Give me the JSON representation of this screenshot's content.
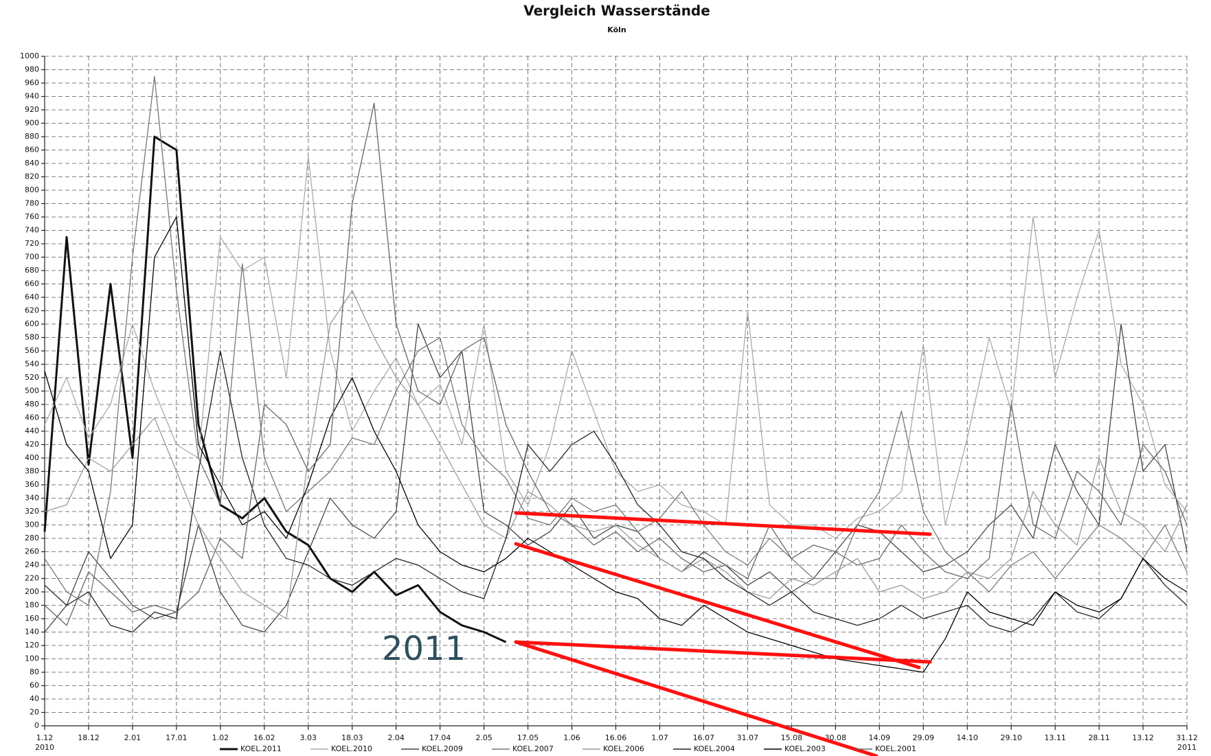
{
  "chart_data": {
    "type": "line",
    "title": "Vergleich Wasserstände",
    "subtitle": "Köln",
    "annotation": "2011",
    "year_labels": {
      "start": "2010",
      "end": "2011"
    },
    "categories": [
      "1.12",
      null,
      "18.12",
      null,
      "2.01",
      null,
      "17.01",
      null,
      "1.02",
      null,
      "16.02",
      null,
      "3.03",
      null,
      "18.03",
      null,
      "2.04",
      null,
      "17.04",
      null,
      "2.05",
      null,
      "17.05",
      null,
      "1.06",
      null,
      "16.06",
      null,
      "1.07",
      null,
      "16.07",
      null,
      "31.07",
      null,
      "15.08",
      null,
      "30.08",
      null,
      "14.09",
      null,
      "29.09",
      null,
      "14.10",
      null,
      "29.10",
      null,
      "13.11",
      null,
      "28.11",
      null,
      "13.12",
      null,
      "31.12"
    ],
    "ylim": [
      0,
      1000
    ],
    "yticks": [
      0,
      20,
      40,
      60,
      80,
      100,
      120,
      140,
      160,
      180,
      200,
      220,
      240,
      260,
      280,
      300,
      320,
      340,
      360,
      380,
      400,
      420,
      440,
      460,
      480,
      500,
      520,
      540,
      560,
      580,
      600,
      620,
      640,
      660,
      680,
      700,
      720,
      740,
      760,
      780,
      800,
      820,
      840,
      860,
      880,
      900,
      920,
      940,
      960,
      980,
      1000
    ],
    "grid": true,
    "series": [
      {
        "name": "KOEL.2011",
        "color": "#111111",
        "values": [
          290,
          730,
          390,
          660,
          400,
          880,
          860,
          450,
          330,
          310,
          340,
          290,
          270,
          220,
          200,
          230,
          195,
          210,
          170,
          150,
          140,
          125,
          null,
          null,
          null,
          null,
          null,
          null,
          null,
          null,
          null,
          null,
          null,
          null,
          null,
          null,
          null,
          null,
          null,
          null,
          null,
          null,
          null,
          null,
          null,
          null,
          null,
          null,
          null,
          null,
          null,
          null,
          null
        ]
      },
      {
        "name": "KOEL.2010",
        "color": "#aaaaaa",
        "values": [
          450,
          520,
          430,
          480,
          600,
          500,
          420,
          400,
          730,
          680,
          700,
          520,
          850,
          560,
          440,
          500,
          550,
          480,
          510,
          420,
          600,
          380,
          330,
          420,
          560,
          470,
          380,
          350,
          360,
          330,
          320,
          300,
          620,
          330,
          300,
          300,
          280,
          310,
          320,
          350,
          570,
          300,
          430,
          580,
          470,
          760,
          520,
          640,
          740,
          540,
          480,
          360,
          320
        ]
      },
      {
        "name": "KOEL.2009",
        "color": "#444444",
        "values": [
          140,
          180,
          260,
          220,
          180,
          160,
          170,
          300,
          200,
          150,
          140,
          180,
          260,
          340,
          300,
          280,
          320,
          600,
          520,
          560,
          320,
          300,
          270,
          290,
          330,
          280,
          300,
          290,
          250,
          230,
          260,
          240,
          210,
          230,
          200,
          220,
          260,
          300,
          290,
          260,
          230,
          240,
          260,
          300,
          330,
          280,
          420,
          350,
          300,
          600,
          380,
          420,
          260
        ]
      },
      {
        "name": "KOEL.2007",
        "color": "#777777",
        "values": [
          250,
          200,
          180,
          350,
          700,
          970,
          650,
          400,
          330,
          690,
          400,
          320,
          350,
          380,
          430,
          420,
          500,
          560,
          580,
          450,
          400,
          370,
          310,
          300,
          340,
          320,
          330,
          290,
          310,
          350,
          300,
          260,
          240,
          280,
          250,
          220,
          220,
          300,
          350,
          470,
          320,
          260,
          230,
          200,
          240,
          260,
          220,
          260,
          300,
          280,
          250,
          300,
          230
        ]
      },
      {
        "name": "KOEL.2006",
        "color": "#999999",
        "values": [
          320,
          330,
          400,
          380,
          420,
          460,
          380,
          300,
          250,
          200,
          180,
          160,
          400,
          600,
          650,
          580,
          520,
          480,
          420,
          360,
          300,
          280,
          350,
          330,
          300,
          290,
          300,
          270,
          250,
          230,
          250,
          230,
          200,
          190,
          220,
          210,
          230,
          250,
          200,
          210,
          190,
          200,
          230,
          220,
          250,
          350,
          300,
          270,
          400,
          320,
          300,
          260,
          330
        ]
      },
      {
        "name": "KOEL.2004",
        "color": "#222222",
        "values": [
          210,
          180,
          200,
          150,
          140,
          170,
          160,
          380,
          560,
          400,
          300,
          250,
          240,
          220,
          210,
          230,
          250,
          240,
          220,
          200,
          190,
          280,
          420,
          380,
          420,
          440,
          390,
          330,
          300,
          260,
          250,
          220,
          200,
          180,
          200,
          170,
          160,
          150,
          160,
          180,
          160,
          170,
          180,
          150,
          140,
          160,
          200,
          170,
          160,
          190,
          250,
          210,
          180
        ]
      },
      {
        "name": "KOEL.2003",
        "color": "#000000",
        "values": [
          530,
          420,
          380,
          250,
          300,
          700,
          760,
          420,
          360,
          300,
          320,
          280,
          360,
          460,
          520,
          440,
          380,
          300,
          260,
          240,
          230,
          250,
          280,
          260,
          240,
          220,
          200,
          190,
          160,
          150,
          180,
          160,
          140,
          130,
          120,
          110,
          100,
          95,
          90,
          85,
          80,
          130,
          200,
          170,
          160,
          150,
          200,
          180,
          170,
          190,
          250,
          220,
          200
        ]
      },
      {
        "name": "KOEL.2001",
        "color": "#666666",
        "values": [
          180,
          150,
          230,
          200,
          170,
          180,
          170,
          200,
          280,
          250,
          480,
          450,
          380,
          420,
          780,
          930,
          600,
          500,
          480,
          560,
          580,
          450,
          380,
          320,
          300,
          270,
          290,
          260,
          280,
          250,
          230,
          240,
          220,
          300,
          250,
          270,
          260,
          240,
          250,
          300,
          260,
          230,
          220,
          250,
          480,
          300,
          280,
          380,
          350,
          300,
          420,
          380,
          300
        ]
      }
    ]
  }
}
